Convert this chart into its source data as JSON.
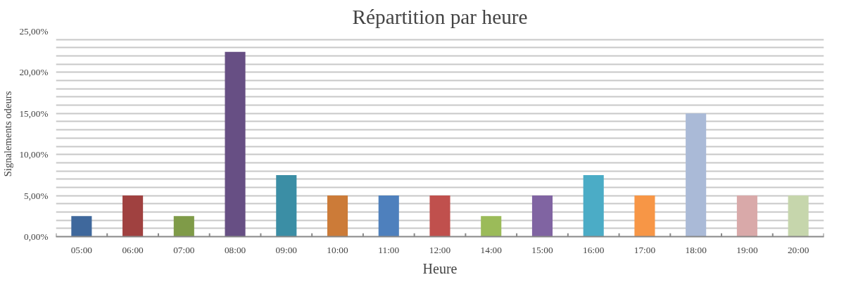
{
  "chart_data": {
    "type": "bar",
    "title": "Répartition par heure",
    "xlabel": "Heure",
    "ylabel": "Signalements odeurs",
    "categories": [
      "05:00",
      "06:00",
      "07:00",
      "08:00",
      "09:00",
      "10:00",
      "11:00",
      "12:00",
      "14:00",
      "15:00",
      "16:00",
      "17:00",
      "18:00",
      "19:00",
      "20:00"
    ],
    "values": [
      2.5,
      5,
      2.5,
      22.5,
      7.5,
      5,
      5,
      5,
      2.5,
      5,
      7.5,
      5,
      15,
      5,
      5
    ],
    "colors": [
      "#3f689c",
      "#a04140",
      "#7f9b48",
      "#674f84",
      "#3b8ea5",
      "#cc7b38",
      "#4e80bd",
      "#c0504d",
      "#9bbb59",
      "#8064a2",
      "#4bacc6",
      "#f79646",
      "#aabad7",
      "#d9a9a9",
      "#c6d6ac"
    ],
    "ylim": [
      0,
      25
    ],
    "yticks": [
      {
        "value": 0,
        "label": "0,00%"
      },
      {
        "value": 1,
        "label": null
      },
      {
        "value": 2,
        "label": null
      },
      {
        "value": 3,
        "label": null
      },
      {
        "value": 4,
        "label": null
      },
      {
        "value": 5,
        "label": "5,00%"
      },
      {
        "value": 6,
        "label": null
      },
      {
        "value": 7,
        "label": null
      },
      {
        "value": 8,
        "label": null
      },
      {
        "value": 9,
        "label": null
      },
      {
        "value": 10,
        "label": "10,00%"
      },
      {
        "value": 11,
        "label": null
      },
      {
        "value": 12,
        "label": null
      },
      {
        "value": 13,
        "label": null
      },
      {
        "value": 14,
        "label": null
      },
      {
        "value": 15,
        "label": "15,00%"
      },
      {
        "value": 16,
        "label": null
      },
      {
        "value": 17,
        "label": null
      },
      {
        "value": 18,
        "label": null
      },
      {
        "value": 19,
        "label": null
      },
      {
        "value": 20,
        "label": "20,00%"
      },
      {
        "value": 21,
        "label": null
      },
      {
        "value": 22,
        "label": null
      },
      {
        "value": 23,
        "label": null
      },
      {
        "value": 24,
        "label": null
      },
      {
        "value": 25,
        "label": "25,00%"
      }
    ],
    "grid": "y"
  }
}
